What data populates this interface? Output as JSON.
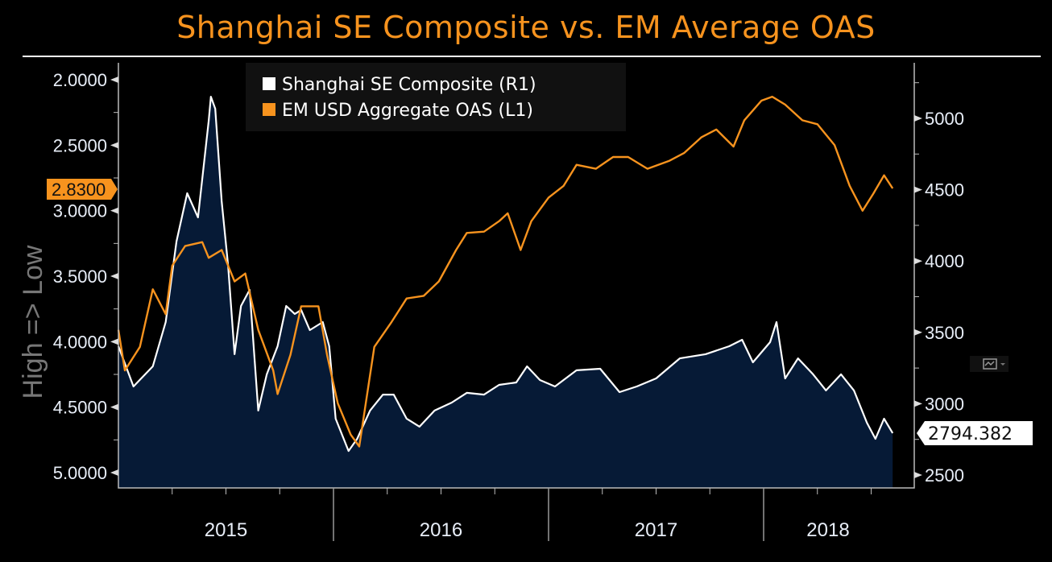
{
  "chart_data": {
    "type": "line",
    "title": "Shanghai SE Composite vs. EM Average OAS",
    "left_axis_label": "High => Low",
    "left_axis": {
      "range": [
        2.0,
        5.0
      ],
      "inverted": true,
      "ticks": [
        "2.0000",
        "2.5000",
        "3.0000",
        "3.5000",
        "4.0000",
        "4.5000",
        "5.0000"
      ]
    },
    "right_axis": {
      "range": [
        2500,
        5250
      ],
      "ticks": [
        "5000",
        "4500",
        "4000",
        "3500",
        "3000",
        "2500"
      ]
    },
    "x_tick_labels": [
      "2015",
      "2016",
      "2017",
      "2018"
    ],
    "x_range": [
      2015.0,
      2018.6
    ],
    "legend": {
      "placement": "top-left",
      "entries": [
        "Shanghai SE Composite (R1)",
        "EM USD Aggregate OAS (L1)"
      ]
    },
    "last_value_labels": {
      "oas": "2.8300",
      "shanghai": "2794.382"
    },
    "colors": {
      "shanghai": "#ffffff",
      "shanghai_fill": "#061a36",
      "oas": "#f7931e"
    },
    "series": [
      {
        "name": "Shanghai SE Composite (R1)",
        "axis": "right",
        "x": [
          2015.0,
          2015.07,
          2015.16,
          2015.22,
          2015.27,
          2015.32,
          2015.37,
          2015.42,
          2015.43,
          2015.45,
          2015.48,
          2015.51,
          2015.54,
          2015.57,
          2015.61,
          2015.65,
          2015.69,
          2015.74,
          2015.78,
          2015.82,
          2015.85,
          2015.89,
          2015.95,
          2015.98,
          2016.01,
          2016.07,
          2016.11,
          2016.17,
          2016.23,
          2016.28,
          2016.34,
          2016.4,
          2016.47,
          2016.55,
          2016.62,
          2016.7,
          2016.77,
          2016.85,
          2016.9,
          2016.96,
          2017.03,
          2017.13,
          2017.24,
          2017.33,
          2017.41,
          2017.5,
          2017.61,
          2017.73,
          2017.84,
          2017.9,
          2017.95,
          2018.03,
          2018.06,
          2018.1,
          2018.16,
          2018.23,
          2018.29,
          2018.36,
          2018.42,
          2018.48,
          2018.52,
          2018.56,
          2018.6
        ],
        "values": [
          3403,
          3121,
          3262,
          3572,
          4137,
          4475,
          4306,
          4983,
          5152,
          5068,
          4419,
          3967,
          3347,
          3685,
          3798,
          2952,
          3206,
          3403,
          3685,
          3629,
          3657,
          3516,
          3572,
          3403,
          2895,
          2669,
          2754,
          2952,
          3064,
          3064,
          2895,
          2839,
          2952,
          3008,
          3076,
          3064,
          3132,
          3149,
          3262,
          3166,
          3121,
          3234,
          3245,
          3081,
          3121,
          3177,
          3318,
          3347,
          3403,
          3448,
          3290,
          3431,
          3572,
          3177,
          3318,
          3206,
          3093,
          3206,
          3093,
          2867,
          2754,
          2895,
          2794
        ]
      },
      {
        "name": "EM USD Aggregate OAS (L1)",
        "axis": "left",
        "x": [
          2015.0,
          2015.03,
          2015.1,
          2015.16,
          2015.22,
          2015.25,
          2015.31,
          2015.39,
          2015.42,
          2015.48,
          2015.54,
          2015.59,
          2015.65,
          2015.72,
          2015.74,
          2015.8,
          2015.85,
          2015.93,
          2015.97,
          2016.02,
          2016.08,
          2016.12,
          2016.15,
          2016.19,
          2016.27,
          2016.34,
          2016.42,
          2016.49,
          2016.57,
          2016.62,
          2016.7,
          2016.77,
          2016.81,
          2016.87,
          2016.92,
          2017.0,
          2017.07,
          2017.13,
          2017.22,
          2017.3,
          2017.37,
          2017.46,
          2017.56,
          2017.63,
          2017.71,
          2017.78,
          2017.86,
          2017.91,
          2017.99,
          2018.04,
          2018.1,
          2018.18,
          2018.25,
          2018.33,
          2018.4,
          2018.46,
          2018.51,
          2018.56,
          2018.6
        ],
        "values": [
          3.91,
          4.22,
          4.04,
          3.6,
          3.79,
          3.42,
          3.27,
          3.24,
          3.36,
          3.3,
          3.54,
          3.48,
          3.91,
          4.22,
          4.4,
          4.1,
          3.73,
          3.73,
          4.1,
          4.47,
          4.71,
          4.8,
          4.47,
          4.04,
          3.85,
          3.67,
          3.65,
          3.54,
          3.3,
          3.17,
          3.16,
          3.08,
          3.02,
          3.3,
          3.08,
          2.9,
          2.81,
          2.65,
          2.68,
          2.59,
          2.59,
          2.68,
          2.62,
          2.56,
          2.44,
          2.38,
          2.51,
          2.31,
          2.16,
          2.13,
          2.19,
          2.31,
          2.34,
          2.5,
          2.81,
          3.0,
          2.87,
          2.73,
          2.83
        ]
      }
    ]
  }
}
